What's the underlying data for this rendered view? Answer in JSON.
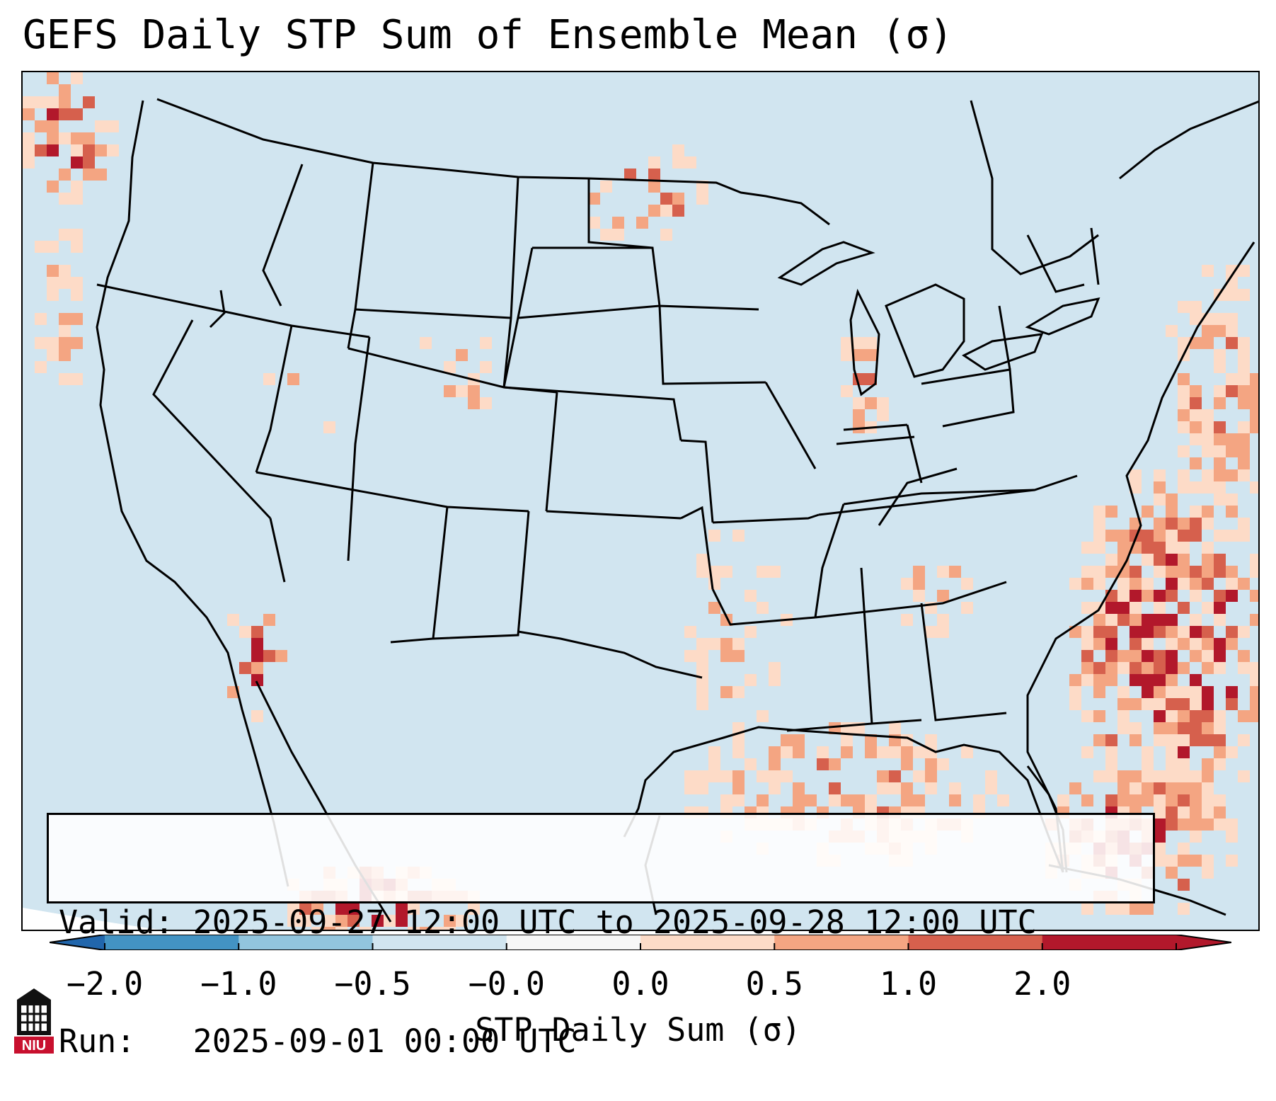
{
  "title": "GEFS Daily STP Sum of Ensemble Mean (σ)",
  "info": {
    "valid_line": "Valid: 2025-09-27 12:00 UTC to 2025-09-28 12:00 UTC",
    "run_line": "Run:   2025-09-01 00:00 UTC"
  },
  "colorbar": {
    "label": "STP Daily Sum (σ)",
    "ticks": [
      "−2.0",
      "−1.0",
      "−0.5",
      "−0.0",
      "0.0",
      "0.5",
      "1.0",
      "2.0"
    ],
    "colors": [
      "#4393c3",
      "#92c5de",
      "#d1e5f0",
      "#f7f7f7",
      "#fddbc7",
      "#f4a582",
      "#d6604d",
      "#b2182b"
    ]
  },
  "logo": {
    "text": "NIU",
    "icon": "university-logo-icon"
  }
}
